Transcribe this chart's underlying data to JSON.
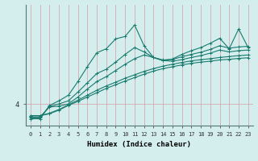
{
  "xlabel": "Humidex (Indice chaleur)",
  "ylabel": "",
  "background_color": "#d4eeee",
  "grid_color": "#d4a8b0",
  "line_color": "#1a7a6e",
  "xlim": [
    -0.5,
    23.5
  ],
  "ylim": [
    3.3,
    7.2
  ],
  "yticks": [
    4
  ],
  "xticks": [
    0,
    1,
    2,
    3,
    4,
    5,
    6,
    7,
    8,
    9,
    10,
    11,
    12,
    13,
    14,
    15,
    16,
    17,
    18,
    19,
    20,
    21,
    22,
    23
  ],
  "series": [
    [
      3.62,
      3.62,
      3.68,
      3.8,
      3.95,
      4.08,
      4.22,
      4.36,
      4.5,
      4.62,
      4.74,
      4.85,
      4.96,
      5.06,
      5.14,
      5.2,
      5.26,
      5.31,
      5.35,
      5.38,
      5.42,
      5.44,
      5.47,
      5.49
    ],
    [
      3.62,
      3.62,
      3.7,
      3.82,
      3.97,
      4.12,
      4.28,
      4.44,
      4.58,
      4.7,
      4.83,
      4.94,
      5.05,
      5.14,
      5.22,
      5.28,
      5.34,
      5.39,
      5.43,
      5.46,
      5.5,
      5.53,
      5.56,
      5.58
    ],
    [
      3.58,
      3.58,
      3.9,
      3.93,
      4.0,
      4.22,
      4.48,
      4.72,
      4.88,
      5.08,
      5.28,
      5.46,
      5.58,
      5.5,
      5.4,
      5.38,
      5.43,
      5.5,
      5.56,
      5.64,
      5.74,
      5.68,
      5.72,
      5.74
    ],
    [
      3.55,
      3.55,
      3.92,
      4.0,
      4.1,
      4.38,
      4.68,
      4.98,
      5.12,
      5.35,
      5.6,
      5.82,
      5.68,
      5.5,
      5.42,
      5.44,
      5.52,
      5.6,
      5.67,
      5.76,
      5.88,
      5.8,
      5.84,
      5.86
    ],
    [
      3.52,
      3.52,
      3.95,
      4.1,
      4.28,
      4.72,
      5.2,
      5.65,
      5.78,
      6.1,
      6.18,
      6.55,
      5.88,
      5.5,
      5.4,
      5.45,
      5.6,
      5.72,
      5.82,
      5.96,
      6.12,
      5.78,
      6.42,
      5.82
    ]
  ],
  "marker": "+",
  "markersize": 3,
  "linewidth": 0.8
}
